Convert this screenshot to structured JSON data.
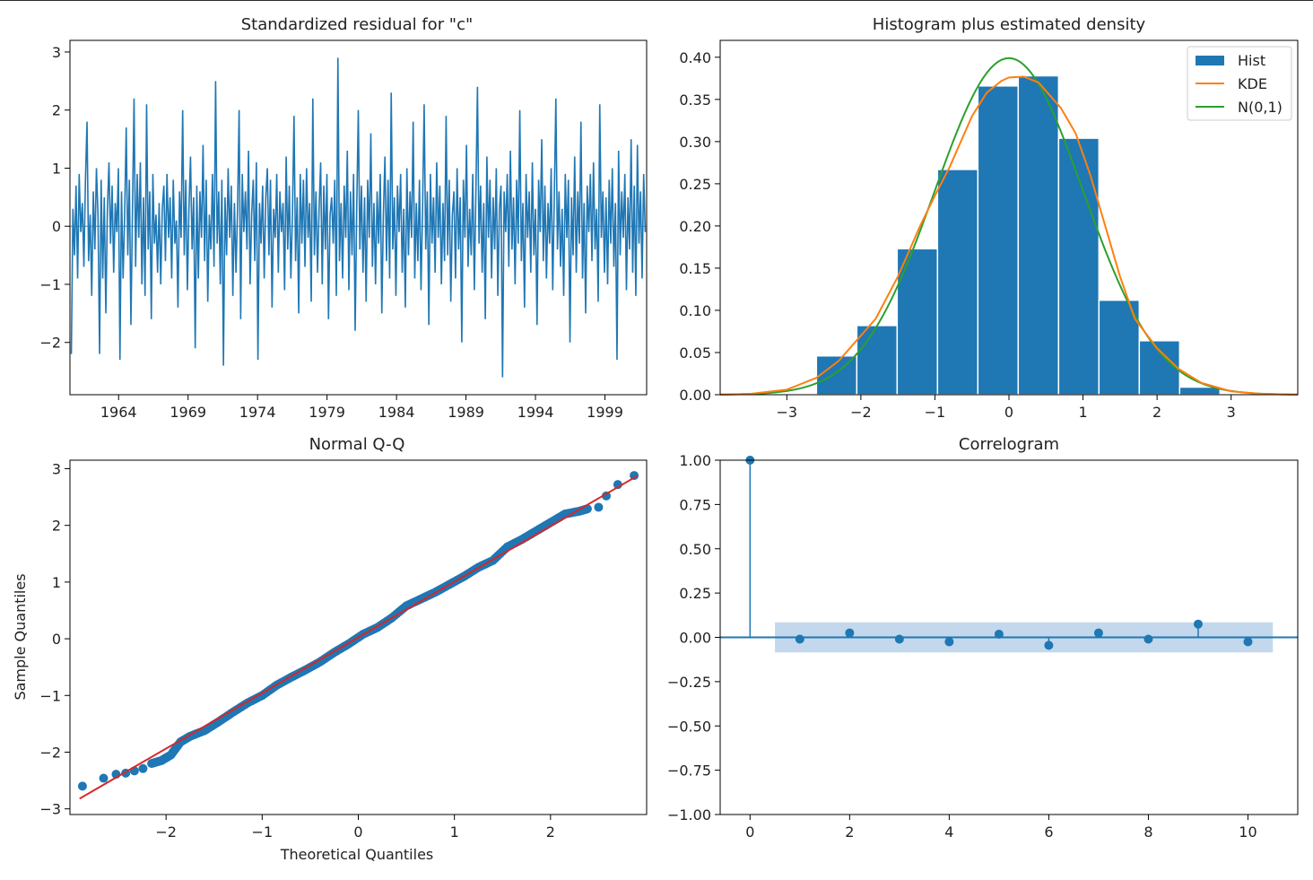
{
  "colors": {
    "blue": "#1f77b4",
    "orange": "#ff7f0e",
    "green": "#2ca02c",
    "red": "#d62728",
    "band": "#bcd4ea"
  },
  "chart_data": [
    {
      "id": "resid",
      "type": "line",
      "title": "Standardized residual for \"c\"",
      "xlabel": "",
      "ylabel": "",
      "xlim": [
        1960.5,
        2002.0
      ],
      "ylim": [
        -2.9,
        3.2
      ],
      "x_ticks": [
        1964,
        1969,
        1974,
        1979,
        1984,
        1989,
        1994,
        1999
      ],
      "y_ticks": [
        -2,
        -1,
        0,
        1,
        2,
        3
      ],
      "x_start": 1960.6,
      "x_end": 2001.9,
      "zero_line": 0,
      "values": [
        -2.2,
        0.3,
        -0.5,
        0.7,
        -0.9,
        0.9,
        -0.1,
        0.4,
        -0.7,
        0.8,
        1.8,
        -0.6,
        0.2,
        -1.2,
        0.6,
        -0.4,
        1.0,
        0.2,
        -2.2,
        0.8,
        -0.9,
        0.5,
        -1.5,
        0.3,
        1.1,
        -0.3,
        0.7,
        -0.8,
        0.4,
        -0.1,
        1.0,
        -2.3,
        0.6,
        -0.9,
        0.2,
        1.7,
        -0.5,
        0.8,
        -1.7,
        0.3,
        2.2,
        -0.7,
        0.9,
        -0.2,
        1.1,
        -1.0,
        0.5,
        -1.2,
        2.1,
        -0.4,
        0.6,
        -1.6,
        0.9,
        -0.3,
        0.2,
        -0.8,
        0.4,
        -1.0,
        0.3,
        0.7,
        -0.6,
        0.9,
        -0.2,
        0.5,
        -0.9,
        0.8,
        -0.3,
        0.1,
        -1.4,
        0.6,
        -0.2,
        2.0,
        -0.5,
        0.8,
        -1.1,
        0.3,
        1.2,
        -0.4,
        0.5,
        -2.1,
        0.7,
        -0.9,
        0.6,
        -0.2,
        1.4,
        -0.6,
        0.8,
        -1.3,
        0.2,
        -0.4,
        0.9,
        -0.7,
        2.5,
        -0.3,
        0.6,
        -1.0,
        0.8,
        -2.4,
        0.5,
        -0.5,
        1.0,
        -0.2,
        0.7,
        -1.2,
        0.4,
        -0.8,
        0.3,
        2.0,
        -1.6,
        0.9,
        -0.1,
        0.6,
        -0.4,
        1.3,
        -1.0,
        0.2,
        0.8,
        -0.6,
        1.1,
        -2.3,
        0.4,
        -0.3,
        0.7,
        -0.9,
        0.5,
        1.0,
        -0.5,
        0.8,
        -1.4,
        0.3,
        -0.2,
        0.9,
        -0.8,
        0.6,
        -0.1,
        0.4,
        -1.1,
        1.2,
        -0.4,
        0.7,
        -0.9,
        0.2,
        1.9,
        -0.6,
        0.5,
        -1.5,
        0.9,
        -0.3,
        0.8,
        -0.7,
        1.0,
        -0.2,
        0.4,
        -1.3,
        2.2,
        -0.5,
        0.6,
        -0.8,
        0.3,
        1.1,
        -1.0,
        0.7,
        -0.4,
        0.9,
        -1.6,
        0.2,
        0.5,
        -0.3,
        0.8,
        -1.2,
        2.9,
        -0.6,
        0.4,
        -0.9,
        0.7,
        -0.2,
        1.3,
        -1.1,
        0.6,
        -0.5,
        0.9,
        -1.8,
        0.3,
        2.0,
        -0.4,
        0.7,
        -0.8,
        0.5,
        -1.3,
        0.8,
        -0.2,
        1.6,
        -0.7,
        0.4,
        -1.0,
        0.6,
        -0.3,
        0.9,
        -1.5,
        0.2,
        1.2,
        -0.6,
        0.8,
        -0.9,
        2.3,
        -0.4,
        0.5,
        -1.2,
        0.7,
        -0.1,
        0.9,
        -0.8,
        0.3,
        -1.4,
        1.0,
        -0.5,
        0.6,
        -0.2,
        1.8,
        -0.9,
        0.4,
        -0.6,
        0.8,
        -1.1,
        0.3,
        2.1,
        -0.4,
        0.6,
        -1.7,
        0.9,
        -0.3,
        0.5,
        -0.8,
        1.1,
        -0.2,
        0.7,
        -1.0,
        0.4,
        -0.6,
        1.9,
        -0.5,
        0.8,
        -1.3,
        0.2,
        0.6,
        -0.9,
        1.0,
        -0.4,
        0.5,
        -2.0,
        0.8,
        -0.2,
        1.4,
        -0.7,
        0.3,
        -0.5,
        0.9,
        -1.1,
        0.6,
        2.4,
        -0.3,
        0.7,
        -0.8,
        0.4,
        -1.6,
        1.2,
        -0.2,
        0.8,
        -0.9,
        0.5,
        -0.4,
        1.0,
        -1.2,
        0.3,
        0.7,
        -2.6,
        0.6,
        -0.1,
        0.9,
        -0.7,
        1.3,
        -0.4,
        0.5,
        -1.0,
        0.8,
        -0.3,
        2.0,
        -0.6,
        0.4,
        -1.4,
        0.9,
        -0.2,
        0.6,
        -0.8,
        1.1,
        -0.5,
        0.3,
        -1.7,
        0.8,
        -0.1,
        1.5,
        -0.6,
        0.7,
        -0.9,
        0.4,
        -0.3,
        1.0,
        -1.1,
        0.5,
        2.2,
        -0.4,
        0.6,
        -0.7,
        0.3,
        -1.2,
        0.9,
        -0.2,
        0.8,
        -2.0,
        0.5,
        -0.5,
        1.2,
        -0.8,
        0.6,
        -0.3,
        1.8,
        -0.9,
        0.4,
        -1.5,
        0.7,
        -0.1,
        0.9,
        -0.6,
        1.1,
        -0.4,
        0.3,
        -1.3,
        2.1,
        -0.2,
        0.6,
        -0.8,
        0.5,
        -1.0,
        0.8,
        -0.3,
        1.0,
        -0.7,
        0.4,
        -2.3,
        1.3,
        -0.5,
        0.6,
        -0.2,
        0.9,
        -1.1,
        0.5,
        -0.4,
        1.5,
        -0.8,
        0.7,
        -1.2,
        1.4,
        -0.3,
        0.6,
        -0.9,
        0.9,
        -0.1
      ]
    },
    {
      "id": "hist",
      "type": "bar",
      "title": "Histogram plus estimated density",
      "xlabel": "",
      "ylabel": "",
      "xlim": [
        -3.9,
        3.9
      ],
      "ylim": [
        0,
        0.42
      ],
      "x_ticks": [
        -3,
        -2,
        -1,
        0,
        1,
        2,
        3
      ],
      "y_ticks": [
        0.0,
        0.05,
        0.1,
        0.15,
        0.2,
        0.25,
        0.3,
        0.35,
        0.4
      ],
      "bin_edges": [
        -2.6,
        -2.055,
        -1.51,
        -0.965,
        -0.42,
        0.125,
        0.67,
        1.215,
        1.76,
        2.305,
        2.85
      ],
      "values": [
        0.046,
        0.082,
        0.173,
        0.267,
        0.366,
        0.378,
        0.304,
        0.112,
        0.064,
        0.009
      ],
      "kde_x": [
        -3.9,
        -3.5,
        -3.0,
        -2.6,
        -2.3,
        -2.0,
        -1.8,
        -1.5,
        -1.2,
        -1.0,
        -0.8,
        -0.5,
        -0.3,
        -0.1,
        0.0,
        0.2,
        0.4,
        0.5,
        0.7,
        0.9,
        1.1,
        1.3,
        1.5,
        1.7,
        2.0,
        2.3,
        2.6,
        3.0,
        3.4,
        3.9
      ],
      "kde_y": [
        0.0,
        0.001,
        0.006,
        0.02,
        0.04,
        0.07,
        0.09,
        0.14,
        0.2,
        0.236,
        0.27,
        0.33,
        0.358,
        0.372,
        0.376,
        0.377,
        0.37,
        0.36,
        0.34,
        0.31,
        0.26,
        0.2,
        0.14,
        0.09,
        0.055,
        0.03,
        0.014,
        0.004,
        0.001,
        0.0
      ],
      "legend": [
        {
          "label": "Hist",
          "kind": "patch",
          "color": "#1f77b4"
        },
        {
          "label": "KDE",
          "kind": "line",
          "color": "#ff7f0e"
        },
        {
          "label": "N(0,1)",
          "kind": "line",
          "color": "#2ca02c"
        }
      ],
      "legend_position": "top-right"
    },
    {
      "id": "qq",
      "type": "scatter",
      "title": "Normal Q-Q",
      "xlabel": "Theoretical Quantiles",
      "ylabel": "Sample Quantiles",
      "xlim": [
        -3.0,
        3.0
      ],
      "ylim": [
        -3.1,
        3.15
      ],
      "x_ticks": [
        -2,
        -1,
        0,
        1,
        2
      ],
      "y_ticks": [
        -3,
        -2,
        -1,
        0,
        1,
        2,
        3
      ],
      "reference_line": {
        "x": [
          -2.9,
          2.9
        ],
        "y": [
          -2.82,
          2.87
        ]
      },
      "tail_points": [
        [
          -2.87,
          -2.6
        ],
        [
          -2.65,
          -2.46
        ],
        [
          -2.52,
          -2.39
        ],
        [
          -2.42,
          -2.37
        ],
        [
          -2.33,
          -2.33
        ],
        [
          -2.24,
          -2.29
        ],
        [
          2.5,
          2.32
        ],
        [
          2.58,
          2.52
        ],
        [
          2.7,
          2.72
        ],
        [
          2.87,
          2.88
        ]
      ],
      "quantile_points": [
        [
          -2.15,
          -2.2
        ],
        [
          -2.05,
          -2.15
        ],
        [
          -1.95,
          -2.05
        ],
        [
          -1.85,
          -1.82
        ],
        [
          -1.75,
          -1.72
        ],
        [
          -1.6,
          -1.62
        ],
        [
          -1.45,
          -1.46
        ],
        [
          -1.3,
          -1.29
        ],
        [
          -1.15,
          -1.13
        ],
        [
          -1.0,
          -1.0
        ],
        [
          -0.85,
          -0.82
        ],
        [
          -0.7,
          -0.68
        ],
        [
          -0.55,
          -0.55
        ],
        [
          -0.4,
          -0.41
        ],
        [
          -0.25,
          -0.24
        ],
        [
          -0.1,
          -0.09
        ],
        [
          0.05,
          0.08
        ],
        [
          0.2,
          0.2
        ],
        [
          0.35,
          0.37
        ],
        [
          0.5,
          0.58
        ],
        [
          0.65,
          0.7
        ],
        [
          0.8,
          0.82
        ],
        [
          0.95,
          0.96
        ],
        [
          1.1,
          1.1
        ],
        [
          1.25,
          1.26
        ],
        [
          1.4,
          1.38
        ],
        [
          1.55,
          1.62
        ],
        [
          1.7,
          1.75
        ],
        [
          1.85,
          1.9
        ],
        [
          2.0,
          2.05
        ],
        [
          2.15,
          2.2
        ],
        [
          2.3,
          2.25
        ],
        [
          2.4,
          2.3
        ]
      ]
    },
    {
      "id": "acf",
      "type": "scatter",
      "title": "Correlogram",
      "xlabel": "",
      "ylabel": "",
      "xlim": [
        -0.6,
        11.0
      ],
      "ylim": [
        -1.0,
        1.0
      ],
      "x_ticks": [
        0,
        2,
        4,
        6,
        8,
        10
      ],
      "y_ticks": [
        -1.0,
        -0.75,
        -0.5,
        -0.25,
        0.0,
        0.25,
        0.5,
        0.75,
        1.0
      ],
      "lags": [
        0,
        1,
        2,
        3,
        4,
        5,
        6,
        7,
        8,
        9,
        10
      ],
      "values": [
        1.0,
        -0.01,
        0.025,
        -0.01,
        -0.025,
        0.018,
        -0.045,
        0.025,
        -0.01,
        0.075,
        -0.025
      ],
      "confidence_band": [
        -0.085,
        0.085
      ],
      "band_x": [
        0.5,
        10.5
      ]
    }
  ]
}
